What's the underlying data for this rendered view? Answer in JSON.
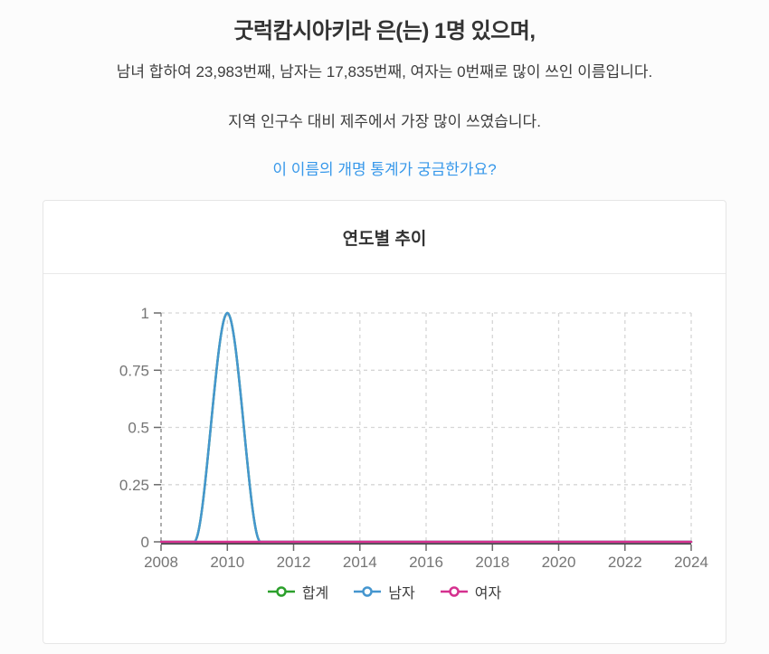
{
  "header": {
    "title": "굿럭캄시아키라 은(는) 1명 있으며,",
    "rank_line": "남녀 합하여 23,983번째, 남자는 17,835번째, 여자는 0번째로 많이 쓰인 이름입니다.",
    "region_line": "지역 인구수 대비 제주에서 가장 많이 쓰였습니다.",
    "rename_link": "이 이름의 개명 통계가 궁금한가요?",
    "link_color": "#3798ea",
    "text_color": "#3d3d3d"
  },
  "trend_card": {
    "title": "연도별 추이"
  },
  "chart_data": {
    "type": "line",
    "title": "연도별 추이",
    "x": [
      2008,
      2009,
      2010,
      2011,
      2012,
      2013,
      2014,
      2015,
      2016,
      2017,
      2018,
      2019,
      2020,
      2021,
      2022,
      2023,
      2024
    ],
    "x_ticks": [
      2008,
      2010,
      2012,
      2014,
      2016,
      2018,
      2020,
      2022,
      2024
    ],
    "y_ticks": [
      0,
      0.25,
      0.5,
      0.75,
      1
    ],
    "y_tick_labels": [
      "0",
      "0.25",
      "0.5",
      "0.75",
      "1"
    ],
    "ylim": [
      0,
      1
    ],
    "grid": "dashed",
    "legend_position": "bottom",
    "grid_color": "#d6d6d6",
    "axis_color": "#4a4a4a",
    "tick_label_color": "#757575",
    "series": [
      {
        "name": "합계",
        "color": "#2ca02c",
        "values": [
          0,
          0,
          1,
          0,
          0,
          0,
          0,
          0,
          0,
          0,
          0,
          0,
          0,
          0,
          0,
          0,
          0
        ]
      },
      {
        "name": "남자",
        "color": "#4596cf",
        "values": [
          0,
          0,
          1,
          0,
          0,
          0,
          0,
          0,
          0,
          0,
          0,
          0,
          0,
          0,
          0,
          0,
          0
        ]
      },
      {
        "name": "여자",
        "color": "#d5318f",
        "values": [
          0,
          0,
          0,
          0,
          0,
          0,
          0,
          0,
          0,
          0,
          0,
          0,
          0,
          0,
          0,
          0,
          0
        ]
      }
    ]
  }
}
